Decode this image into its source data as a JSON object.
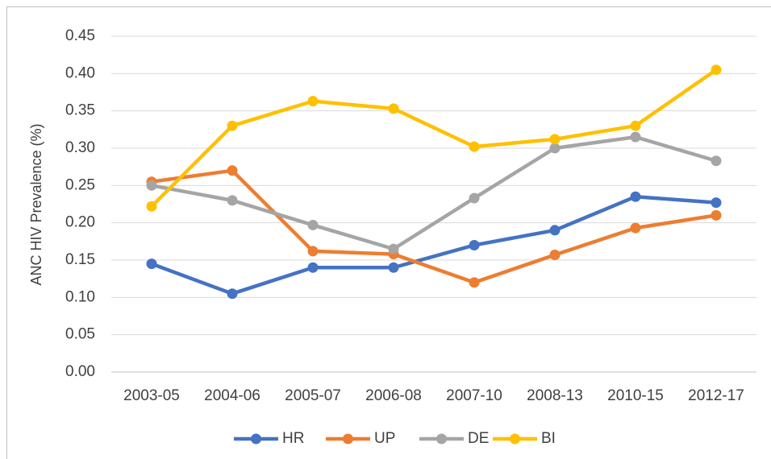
{
  "chart_data": {
    "type": "line",
    "ylabel": "ANC HIV Prevalence (%)",
    "categories": [
      "2003-05",
      "2004-06",
      "2005-07",
      "2006-08",
      "2007-10",
      "2008-13",
      "2010-15",
      "2012-17"
    ],
    "series": [
      {
        "name": "HR",
        "color": "#4472c4",
        "values": [
          0.145,
          0.105,
          0.14,
          0.14,
          0.17,
          0.19,
          0.235,
          0.227
        ]
      },
      {
        "name": "UP",
        "color": "#ed7d31",
        "values": [
          0.255,
          0.27,
          0.162,
          0.158,
          0.12,
          0.157,
          0.193,
          0.21
        ]
      },
      {
        "name": "DE",
        "color": "#a5a5a5",
        "values": [
          0.25,
          0.23,
          0.197,
          0.165,
          0.233,
          0.3,
          0.315,
          0.283
        ]
      },
      {
        "name": "BI",
        "color": "#ffc000",
        "values": [
          0.222,
          0.33,
          0.363,
          0.353,
          0.302,
          0.312,
          0.33,
          0.405
        ]
      }
    ],
    "ylim": [
      0,
      0.45
    ],
    "yticks": [
      {
        "value": 0,
        "label": "0.00"
      },
      {
        "value": 0.05,
        "label": "0.05"
      },
      {
        "value": 0.1,
        "label": "0.10"
      },
      {
        "value": 0.15,
        "label": "0.15"
      },
      {
        "value": 0.2,
        "label": "0.20"
      },
      {
        "value": 0.25,
        "label": "0.25"
      },
      {
        "value": 0.3,
        "label": "0.30"
      },
      {
        "value": 0.35,
        "label": "0.35"
      },
      {
        "value": 0.4,
        "label": "0.40"
      },
      {
        "value": 0.45,
        "label": "0.45"
      }
    ],
    "grid": true,
    "legend": "bottom"
  }
}
